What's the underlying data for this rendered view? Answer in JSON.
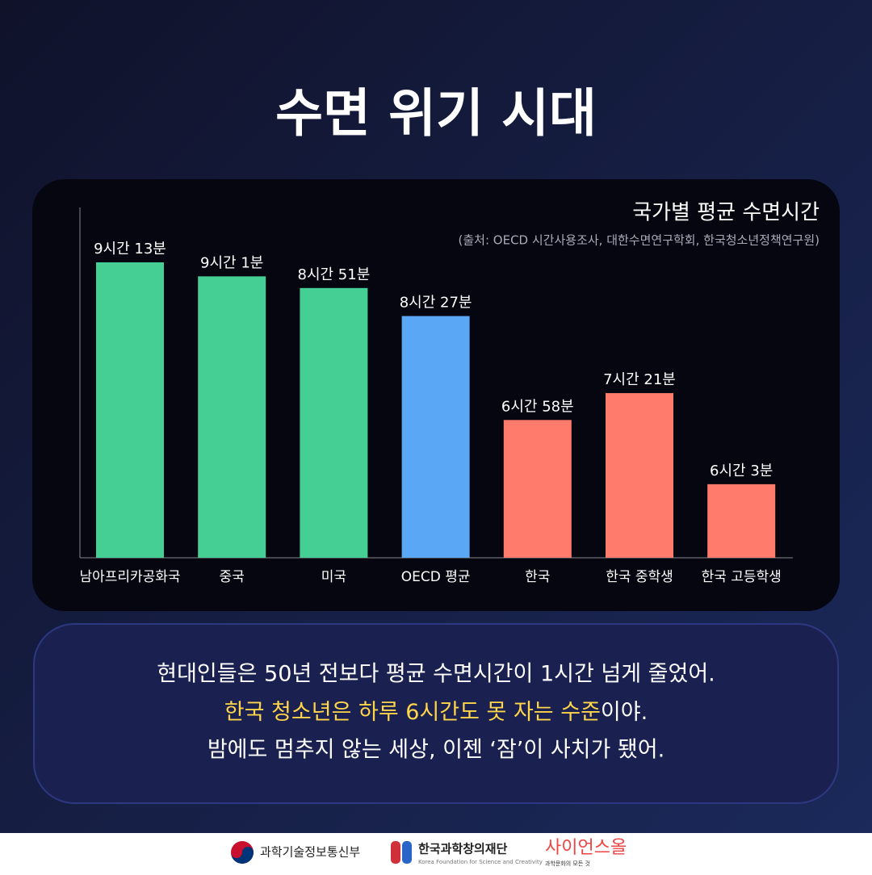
{
  "title": "수면 위기 시대",
  "chart_data": {
    "type": "bar",
    "title": "국가별 평균 수면시간",
    "subtitle": "(출처: OECD 시간사용조사, 대한수면연구학회, 한국청소년정책연구원)",
    "categories": [
      "남아프리카공화국",
      "중국",
      "미국",
      "OECD 평균",
      "한국",
      "한국 중학생",
      "한국 고등학생"
    ],
    "values": [
      553,
      541,
      531,
      507,
      418,
      441,
      363
    ],
    "value_labels": [
      "9시간 13분",
      "9시간 1분",
      "8시간 51분",
      "8시간 27분",
      "6시간 58분",
      "7시간 21분",
      "6시간 3분"
    ],
    "colors": [
      "#45cf95",
      "#45cf95",
      "#45cf95",
      "#5aa8f5",
      "#ff7b6b",
      "#ff7b6b",
      "#ff7b6b"
    ],
    "ylim": [
      300,
      600
    ]
  },
  "text": {
    "line1": "현대인들은 50년 전보다 평균 수면시간이 1시간 넘게 줄었어.",
    "line2_highlight": "한국 청소년은 하루 6시간도 못 자는 수준",
    "line2_rest": "이야.",
    "line3": "밤에도 멈추지 않는 세상, 이젠 ‘잠’이 사치가 됐어."
  },
  "footer": {
    "logo1": "과학기술정보통신부",
    "logo2": "한국과학창의재단",
    "logo2_sub": "Korea Foundation for Science and Creativity",
    "logo3": "사이언스올",
    "logo3_sub": "과학문화의 모든 것"
  }
}
